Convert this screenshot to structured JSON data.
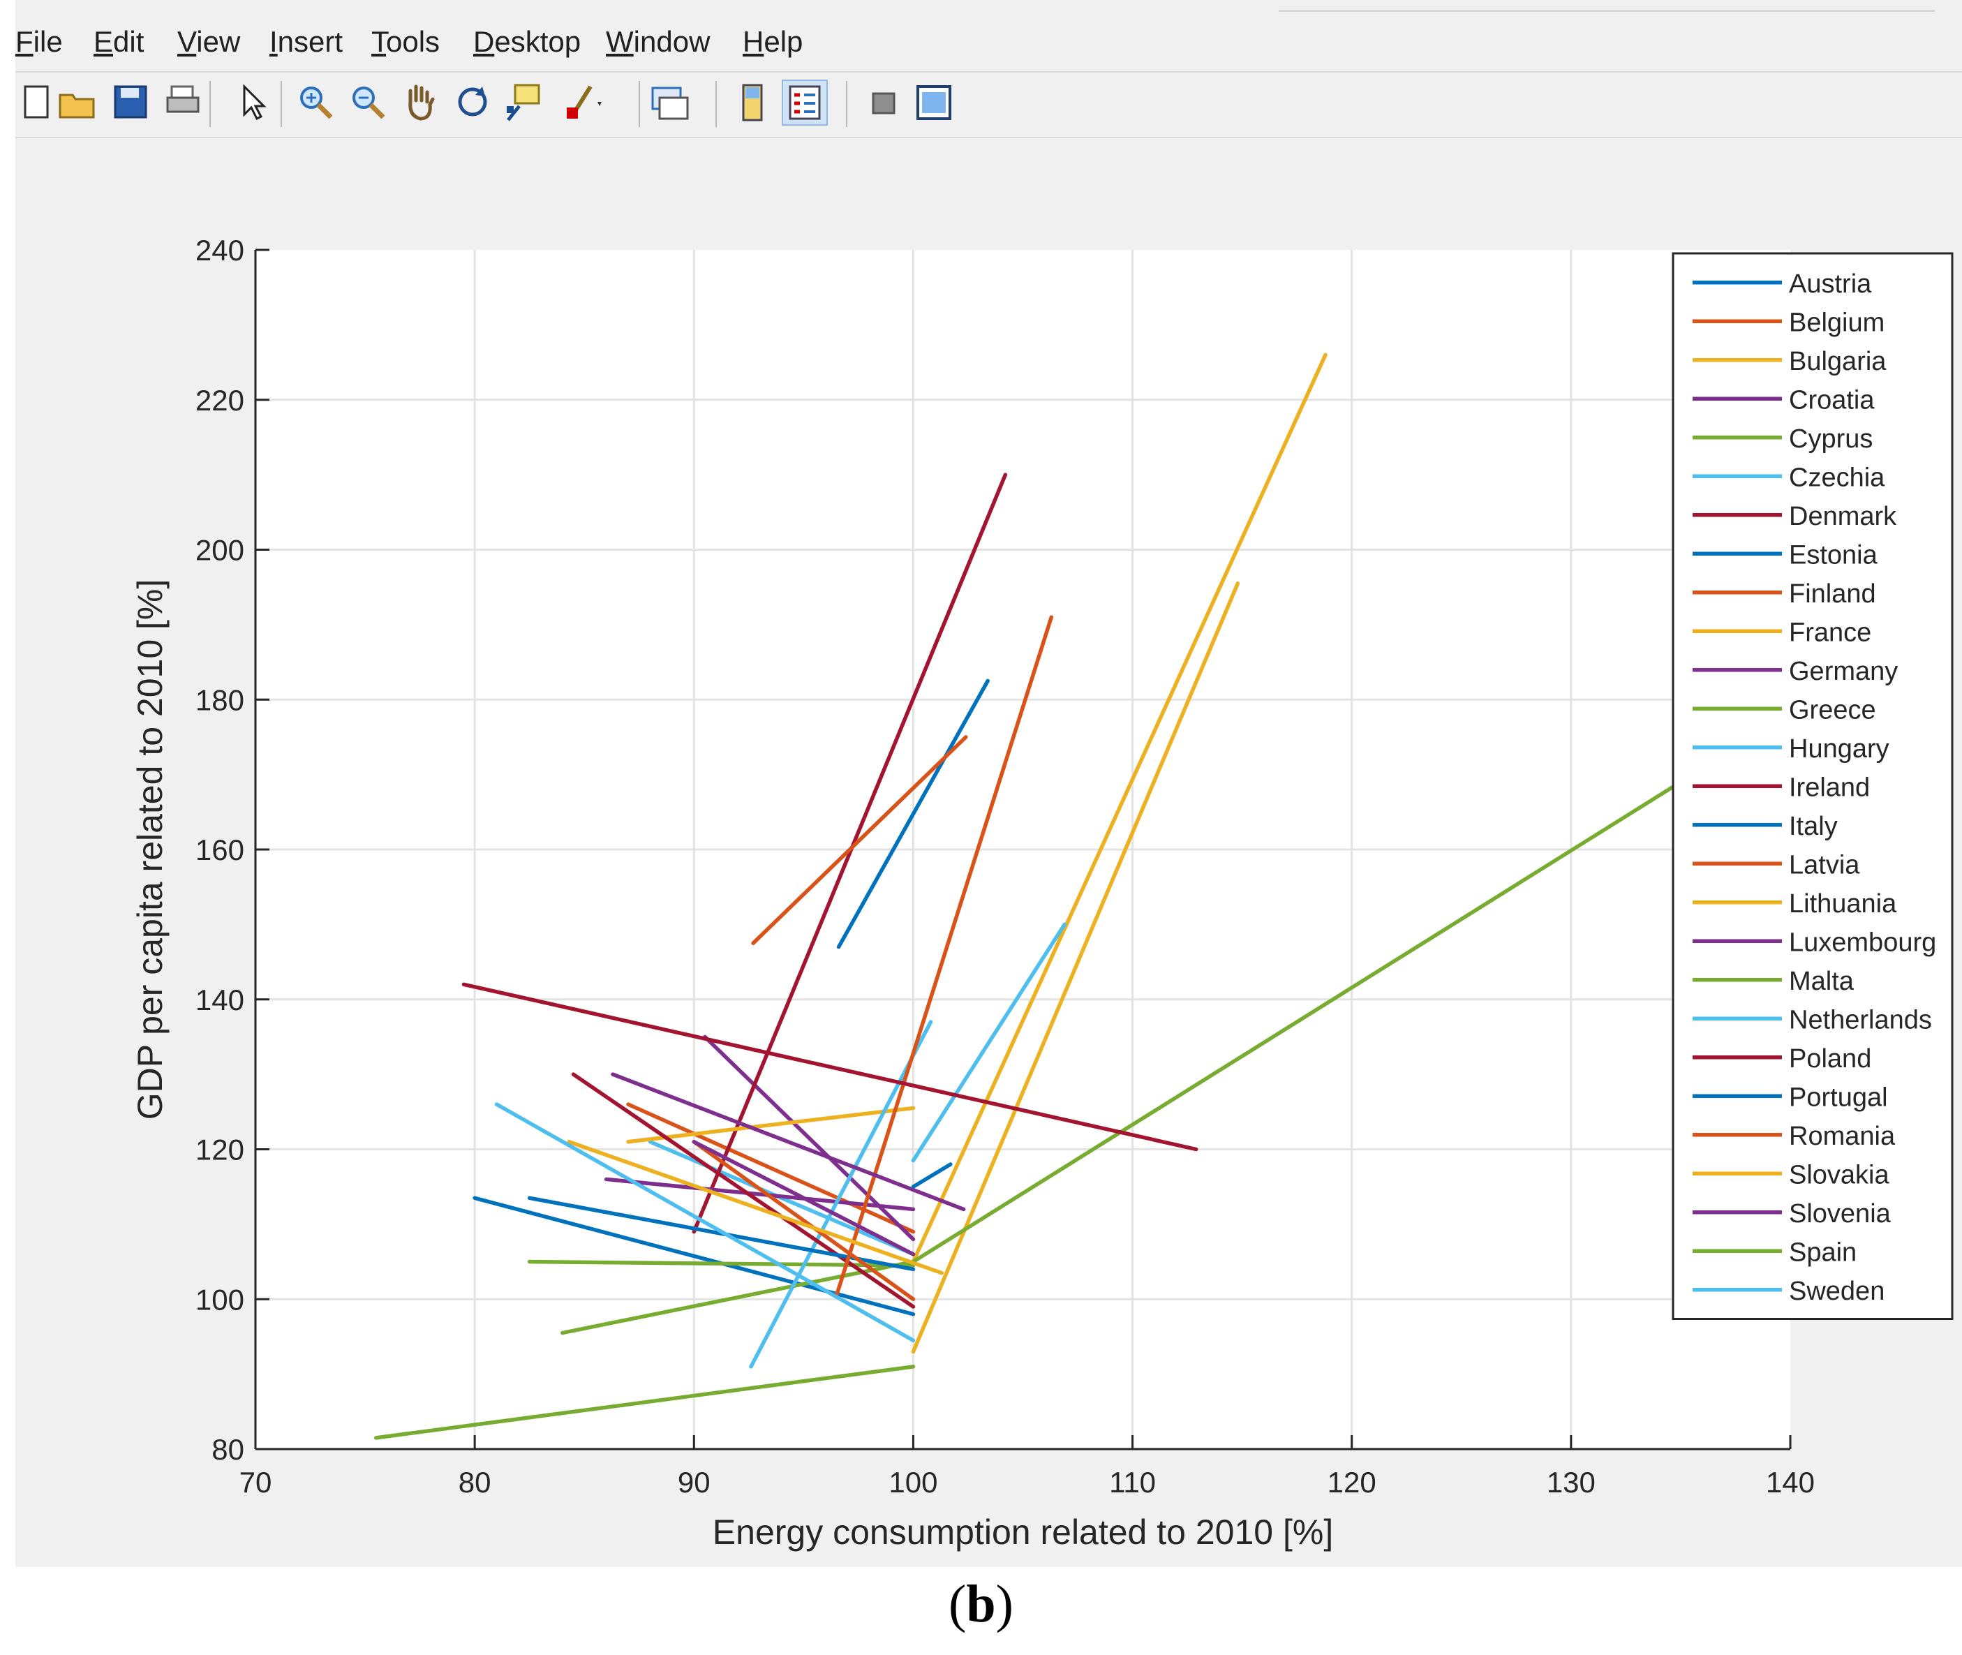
{
  "menu": {
    "items": [
      {
        "mnemonic": "F",
        "rest": "ile"
      },
      {
        "mnemonic": "E",
        "rest": "dit"
      },
      {
        "mnemonic": "V",
        "rest": "iew"
      },
      {
        "mnemonic": "I",
        "rest": "nsert"
      },
      {
        "mnemonic": "T",
        "rest": "ools"
      },
      {
        "mnemonic": "D",
        "rest": "esktop"
      },
      {
        "mnemonic": "W",
        "rest": "indow"
      },
      {
        "mnemonic": "H",
        "rest": "elp"
      }
    ]
  },
  "toolbar": {
    "buttons": [
      "new-figure-icon",
      "open-file-icon",
      "save-icon",
      "print-icon",
      "edit-plot-arrow-icon",
      "zoom-in-icon",
      "zoom-out-icon",
      "pan-hand-icon",
      "rotate-3d-icon",
      "data-cursor-icon",
      "brush-icon",
      "link-plot-icon",
      "colorbar-icon",
      "legend-icon",
      "hide-plot-tools-icon",
      "show-plot-tools-icon"
    ],
    "active": "legend-icon"
  },
  "caption": {
    "open": "(",
    "letter": "b",
    "close": ")"
  },
  "chart_data": {
    "type": "line",
    "xlabel": "Energy consumption related to 2010 [%]",
    "ylabel": "GDP per capita related to 2010 [%]",
    "xlim": [
      70,
      140
    ],
    "ylim": [
      80,
      240
    ],
    "xticks": [
      70,
      80,
      90,
      100,
      110,
      120,
      130,
      140
    ],
    "yticks": [
      80,
      100,
      120,
      140,
      160,
      180,
      200,
      220,
      240
    ],
    "grid": true,
    "legend_position": "top-right",
    "series": [
      {
        "name": "Austria",
        "color": "#0072BD",
        "x": [
          100,
          80
        ],
        "y": [
          98,
          113.5
        ]
      },
      {
        "name": "Belgium",
        "color": "#D95319",
        "x": [
          100,
          87
        ],
        "y": [
          109,
          126
        ]
      },
      {
        "name": "Bulgaria",
        "color": "#EDB120",
        "x": [
          100,
          118.8
        ],
        "y": [
          105,
          226
        ]
      },
      {
        "name": "Croatia",
        "color": "#7E2F8E",
        "x": [
          100,
          90.5
        ],
        "y": [
          108,
          135
        ]
      },
      {
        "name": "Cyprus",
        "color": "#77AC30",
        "x": [
          100,
          84
        ],
        "y": [
          105,
          95.5
        ]
      },
      {
        "name": "Czechia",
        "color": "#4DBEEE",
        "x": [
          100,
          88
        ],
        "y": [
          106,
          121
        ]
      },
      {
        "name": "Denmark",
        "color": "#A2142F",
        "x": [
          90,
          104.2
        ],
        "y": [
          109,
          210
        ]
      },
      {
        "name": "Estonia",
        "color": "#0072BD",
        "x": [
          96.6,
          103.4
        ],
        "y": [
          147,
          182.5
        ]
      },
      {
        "name": "Finland",
        "color": "#D95319",
        "x": [
          92.7,
          102.4
        ],
        "y": [
          147.5,
          175
        ]
      },
      {
        "name": "France",
        "color": "#EDB120",
        "x": [
          100,
          87
        ],
        "y": [
          125.5,
          121
        ]
      },
      {
        "name": "Germany",
        "color": "#7E2F8E",
        "x": [
          100,
          86
        ],
        "y": [
          112,
          116
        ]
      },
      {
        "name": "Greece",
        "color": "#77AC30",
        "x": [
          100,
          82.5
        ],
        "y": [
          104.5,
          105
        ]
      },
      {
        "name": "Hungary",
        "color": "#4DBEEE",
        "x": [
          92.6,
          100.8
        ],
        "y": [
          91,
          137
        ]
      },
      {
        "name": "Ireland",
        "color": "#A2142F",
        "x": [
          100,
          84.5
        ],
        "y": [
          99,
          130
        ]
      },
      {
        "name": "Italy",
        "color": "#0072BD",
        "x": [
          100,
          82.5
        ],
        "y": [
          104,
          113.5
        ]
      },
      {
        "name": "Latvia",
        "color": "#D95319",
        "x": [
          96.5,
          106.3
        ],
        "y": [
          100.5,
          191
        ]
      },
      {
        "name": "Lithuania",
        "color": "#EDB120",
        "x": [
          100,
          114.8
        ],
        "y": [
          93,
          195.5
        ]
      },
      {
        "name": "Luxembourg",
        "color": "#7E2F8E",
        "x": [
          102.3,
          86.3
        ],
        "y": [
          112,
          130
        ]
      },
      {
        "name": "Malta",
        "color": "#77AC30",
        "x": [
          100,
          135
        ],
        "y": [
          105,
          169
        ]
      },
      {
        "name": "Netherlands",
        "color": "#4DBEEE",
        "x": [
          100,
          106.9
        ],
        "y": [
          118.5,
          150
        ]
      },
      {
        "name": "Poland",
        "color": "#A2142F",
        "x": [
          79.5,
          112.9
        ],
        "y": [
          142,
          120
        ]
      },
      {
        "name": "Portugal",
        "color": "#0072BD",
        "x": [
          100,
          101.7
        ],
        "y": [
          115,
          118
        ]
      },
      {
        "name": "Romania",
        "color": "#D95319",
        "x": [
          100,
          90
        ],
        "y": [
          100,
          121
        ]
      },
      {
        "name": "Slovakia",
        "color": "#EDB120",
        "x": [
          101.3,
          84.3
        ],
        "y": [
          103.5,
          121
        ]
      },
      {
        "name": "Slovenia",
        "color": "#7E2F8E",
        "x": [
          100,
          90
        ],
        "y": [
          106,
          121
        ]
      },
      {
        "name": "Spain",
        "color": "#77AC30",
        "x": [
          100,
          75.5
        ],
        "y": [
          91,
          81.5
        ]
      },
      {
        "name": "Sweden",
        "color": "#4DBEEE",
        "x": [
          100,
          81
        ],
        "y": [
          94.5,
          126
        ]
      }
    ]
  }
}
